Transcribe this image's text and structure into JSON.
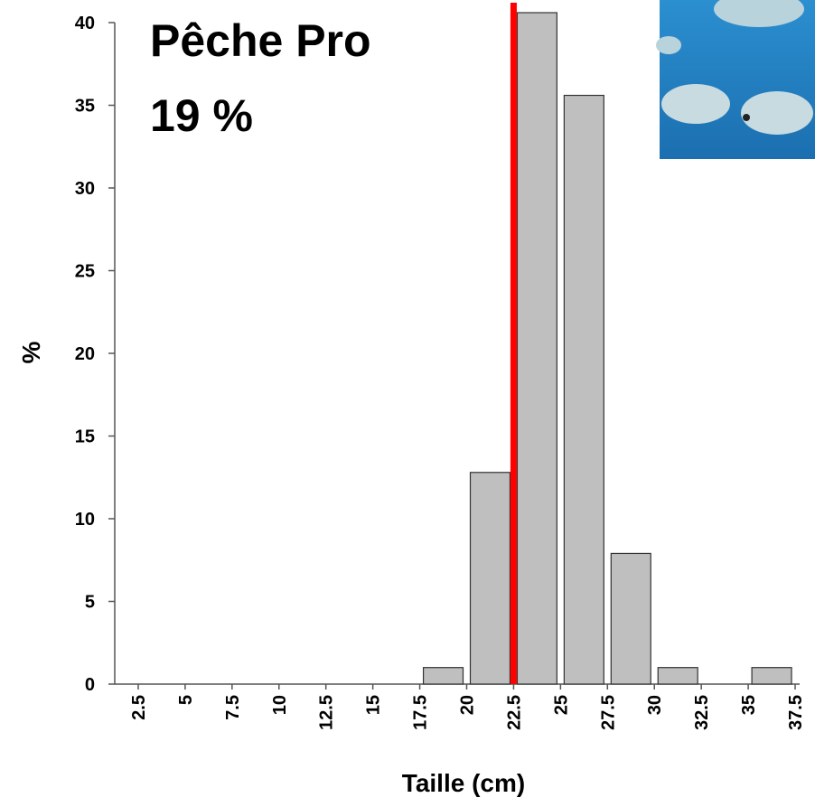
{
  "chart_data": {
    "type": "histogram",
    "x_label": "Taille (cm)",
    "y_label": "%",
    "annotations": [
      "Pêche Pro",
      "19 %"
    ],
    "bins": [
      2.5,
      5,
      7.5,
      10,
      12.5,
      15,
      17.5,
      20,
      22.5,
      25,
      27.5,
      30,
      32.5,
      35,
      37.5
    ],
    "values": [
      0,
      0,
      0,
      0,
      0,
      0,
      1,
      12.8,
      40.6,
      35.6,
      7.9,
      1,
      0,
      1
    ],
    "color": "#bfbfbf",
    "xlim": [
      1.25,
      38.75
    ],
    "xticks": [
      2.5,
      5,
      7.5,
      10,
      12.5,
      15,
      17.5,
      20,
      22.5,
      25,
      27.5,
      30,
      32.5,
      35,
      37.5
    ],
    "ylim": [
      0,
      40
    ],
    "yticks": [
      0,
      5,
      10,
      15,
      20,
      25,
      30,
      35,
      40
    ],
    "reference_line": {
      "x": 22.5,
      "color": "#ff0000"
    }
  }
}
